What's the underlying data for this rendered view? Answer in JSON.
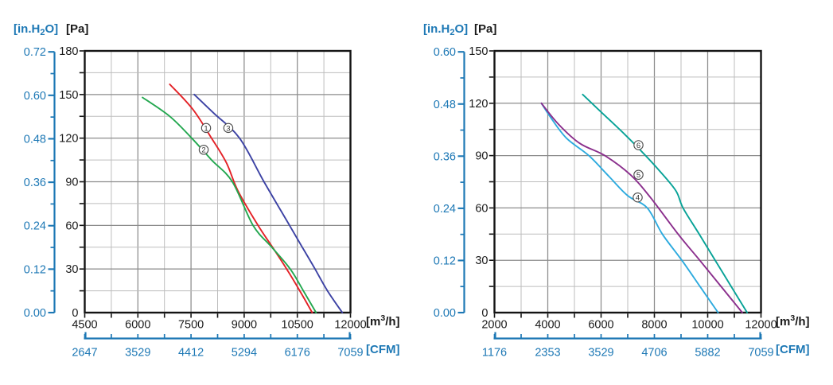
{
  "colors": {
    "axis_blue": "#1d78b5",
    "frame": "#141414",
    "text_dark": "#1a1a1a",
    "grid_major": "#8c8c8c",
    "grid_minor": "#bdbdbd",
    "marker_stroke": "#4a4a4a",
    "curve_red": "#e32126",
    "curve_green": "#23a74f",
    "curve_navy": "#3c42a4",
    "curve_cyan": "#2caade",
    "curve_purple": "#8a2e8c",
    "curve_teal": "#07a297"
  },
  "charts": [
    {
      "name": "fan-curves-chart-left",
      "titles": {
        "y2_pre": "[in.H",
        "y2_sub": "2",
        "y2_post": "O]",
        "y1": "[Pa]",
        "x1_pre": "[m",
        "x1_sup": "3",
        "x1_post": "/h]",
        "x2": "[CFM]"
      },
      "chart_data": {
        "type": "line",
        "x_axis": {
          "unit": "m3/h",
          "min": 4500,
          "max": 12000,
          "major_ticks": [
            4500,
            6000,
            7500,
            9000,
            10500,
            12000
          ],
          "minor_step": 750
        },
        "y_axis": {
          "unit": "Pa",
          "min": 0,
          "max": 180,
          "major_ticks": [
            0,
            30,
            60,
            90,
            120,
            150,
            180
          ],
          "minor_step": 15
        },
        "y2_axis": {
          "unit": "in.H2O",
          "labels": [
            "0.00",
            "0.12",
            "0.24",
            "0.36",
            "0.48",
            "0.60",
            "0.72"
          ],
          "minor_step": 0.06,
          "pa_per_in_h2o": 249.089
        },
        "x2_axis": {
          "unit": "CFM",
          "labels": [
            "2647",
            "3529",
            "4412",
            "5294",
            "6176",
            "7059"
          ]
        },
        "grid": true,
        "series": [
          {
            "name": "1",
            "color_key": "curve_red",
            "points": [
              [
                6900,
                157
              ],
              [
                7545,
                140
              ],
              [
                8080,
                120
              ],
              [
                8500,
                103
              ],
              [
                8820,
                84
              ],
              [
                9390,
                60
              ],
              [
                9800,
                45
              ],
              [
                10200,
                30
              ],
              [
                10570,
                15
              ],
              [
                10920,
                0
              ]
            ]
          },
          {
            "name": "2",
            "color_key": "curve_green",
            "points": [
              [
                6130,
                148
              ],
              [
                6900,
                135
              ],
              [
                7520,
                120
              ],
              [
                8080,
                105
              ],
              [
                8665,
                90
              ],
              [
                9250,
                60
              ],
              [
                9780,
                45
              ],
              [
                10300,
                30
              ],
              [
                10670,
                15
              ],
              [
                11030,
                0
              ]
            ]
          },
          {
            "name": "3",
            "color_key": "curve_navy",
            "points": [
              [
                7590,
                150
              ],
              [
                8150,
                137
              ],
              [
                8870,
                120
              ],
              [
                9560,
                90
              ],
              [
                10280,
                60
              ],
              [
                10640,
                45
              ],
              [
                11000,
                30
              ],
              [
                11350,
                15
              ],
              [
                11770,
                0
              ]
            ]
          }
        ],
        "series_markers": [
          {
            "label": "1",
            "x": 7925,
            "pa": 127
          },
          {
            "label": "2",
            "x": 7858,
            "pa": 112
          },
          {
            "label": "3",
            "x": 8552,
            "pa": 127
          }
        ]
      }
    },
    {
      "name": "fan-curves-chart-right",
      "titles": {
        "y2_pre": "[in.H",
        "y2_sub": "2",
        "y2_post": "O]",
        "y1": "[Pa]",
        "x1_pre": "[m",
        "x1_sup": "3",
        "x1_post": "/h]",
        "x2": "[CFM]"
      },
      "chart_data": {
        "type": "line",
        "x_axis": {
          "unit": "m3/h",
          "min": 2000,
          "max": 12000,
          "major_ticks": [
            2000,
            4000,
            6000,
            8000,
            10000,
            12000
          ],
          "minor_step": 1000
        },
        "y_axis": {
          "unit": "Pa",
          "min": 0,
          "max": 150,
          "major_ticks": [
            0,
            30,
            60,
            90,
            120,
            150
          ],
          "minor_step": 15
        },
        "y2_axis": {
          "unit": "in.H2O",
          "labels": [
            "0.00",
            "0.12",
            "0.24",
            "0.36",
            "0.48",
            "0.60"
          ],
          "minor_step": 0.06,
          "pa_per_in_h2o": 249.089
        },
        "x2_axis": {
          "unit": "CFM",
          "labels": [
            "1176",
            "2353",
            "3529",
            "4706",
            "5882",
            "7059"
          ]
        },
        "grid": true,
        "series": [
          {
            "name": "4",
            "color_key": "curve_cyan",
            "points": [
              [
                3760,
                120
              ],
              [
                4100,
                112
              ],
              [
                4700,
                100
              ],
              [
                5540,
                90
              ],
              [
                6300,
                78
              ],
              [
                7000,
                67
              ],
              [
                7730,
                60
              ],
              [
                8300,
                45
              ],
              [
                9030,
                30
              ],
              [
                9710,
                15
              ],
              [
                10390,
                0
              ]
            ]
          },
          {
            "name": "5",
            "color_key": "curve_purple",
            "points": [
              [
                3760,
                120
              ],
              [
                4400,
                108
              ],
              [
                5200,
                97
              ],
              [
                6140,
                90
              ],
              [
                7100,
                79
              ],
              [
                7850,
                66
              ],
              [
                8890,
                45
              ],
              [
                9700,
                30
              ],
              [
                10500,
                15
              ],
              [
                11300,
                0
              ]
            ]
          },
          {
            "name": "6",
            "color_key": "curve_teal",
            "points": [
              [
                5310,
                125
              ],
              [
                6000,
                115
              ],
              [
                6900,
                102
              ],
              [
                7480,
                93
              ],
              [
                8150,
                82
              ],
              [
                8800,
                70
              ],
              [
                9075,
                60
              ],
              [
                9680,
                45
              ],
              [
                10280,
                30
              ],
              [
                10880,
                15
              ],
              [
                11480,
                0
              ]
            ]
          }
        ],
        "series_markers": [
          {
            "label": "4",
            "x": 7373,
            "pa": 66
          },
          {
            "label": "5",
            "x": 7403,
            "pa": 79
          },
          {
            "label": "6",
            "x": 7403,
            "pa": 96
          }
        ]
      }
    }
  ]
}
